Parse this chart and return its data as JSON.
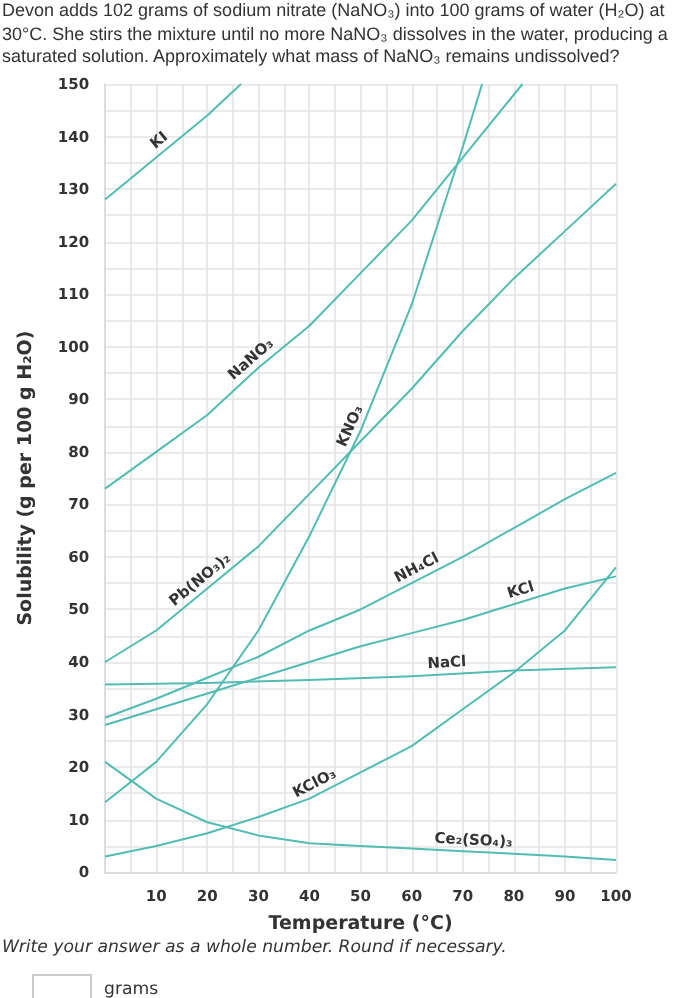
{
  "chart_data": {
    "type": "line",
    "title": "Devon adds 102 grams of sodium nitrate (NaNO₃) into 100 grams of water (H₂O) at 30°C. She stirs the mixture until no more NaNO₃ dissolves in the water, producing a saturated solution. Approximately what mass of NaNO₃ remains undissolved?",
    "xlabel": "Temperature (°C)",
    "ylabel": "Solubility (g per 100 g H₂O)",
    "xlim": [
      0,
      100
    ],
    "ylim": [
      0,
      150
    ],
    "xticks": [
      {
        "value": 0,
        "label": null
      },
      {
        "value": 5,
        "label": null
      },
      10,
      {
        "value": 15,
        "label": null
      },
      20,
      {
        "value": 25,
        "label": null
      },
      30,
      {
        "value": 35,
        "label": null
      },
      40,
      {
        "value": 45,
        "label": null
      },
      50,
      {
        "value": 55,
        "label": null
      },
      60,
      {
        "value": 65,
        "label": null
      },
      70,
      {
        "value": 75,
        "label": null
      },
      80,
      {
        "value": 85,
        "label": null
      },
      90,
      {
        "value": 95,
        "label": null
      },
      100
    ],
    "yticks": [
      0,
      {
        "value": 5,
        "label": null
      },
      10,
      {
        "value": 15,
        "label": null
      },
      20,
      {
        "value": 25,
        "label": null
      },
      30,
      {
        "value": 35,
        "label": null
      },
      40,
      {
        "value": 45,
        "label": null
      },
      50,
      {
        "value": 55,
        "label": null
      },
      60,
      {
        "value": 65,
        "label": null
      },
      70,
      {
        "value": 75,
        "label": null
      },
      80,
      {
        "value": 85,
        "label": null
      },
      90,
      {
        "value": 95,
        "label": null
      },
      100,
      {
        "value": 105,
        "label": null
      },
      110,
      {
        "value": 115,
        "label": null
      },
      120,
      {
        "value": 125,
        "label": null
      },
      130,
      {
        "value": 135,
        "label": null
      },
      140,
      {
        "value": 145,
        "label": null
      },
      150
    ],
    "grid": true,
    "marker": "none",
    "line_style": "solid",
    "series": [
      {
        "color": "#52bcb3",
        "x": [
          0,
          10,
          20,
          26.6
        ],
        "values": [
          128,
          136,
          144,
          150
        ]
      },
      {
        "color": "#52bcb3",
        "x": [
          0,
          10,
          20,
          30,
          40,
          50,
          60,
          70,
          81.7
        ],
        "values": [
          73,
          80,
          87,
          96,
          104,
          114,
          124,
          136,
          150
        ]
      },
      {
        "color": "#52bcb3",
        "x": [
          0,
          10,
          20,
          30,
          40,
          50,
          60,
          70,
          73.8
        ],
        "values": [
          13.3,
          21,
          32,
          46,
          64,
          84,
          108,
          138,
          150
        ]
      },
      {
        "color": "#52bcb3",
        "x": [
          0,
          10,
          20,
          30,
          40,
          50,
          60,
          70,
          80,
          90,
          100
        ],
        "values": [
          40,
          46,
          54,
          62,
          72,
          82,
          92,
          103,
          113,
          122,
          131
        ]
      },
      {
        "color": "#52bcb3",
        "x": [
          0,
          10,
          20,
          30,
          40,
          50,
          60,
          70,
          80,
          90,
          100
        ],
        "values": [
          29.4,
          33,
          37,
          41,
          46,
          50,
          55,
          60,
          65.5,
          71,
          76
        ]
      },
      {
        "color": "#52bcb3",
        "x": [
          0,
          10,
          20,
          30,
          40,
          50,
          60,
          70,
          80,
          90,
          100
        ],
        "values": [
          28,
          31,
          34,
          37,
          40,
          43,
          45.5,
          48,
          51,
          54,
          56.3
        ]
      },
      {
        "color": "#52bcb3",
        "x": [
          0,
          20,
          40,
          60,
          80,
          100
        ],
        "values": [
          35.7,
          36,
          36.6,
          37.3,
          38.4,
          39
        ]
      },
      {
        "color": "#52bcb3",
        "x": [
          0,
          10,
          20,
          30,
          40,
          50,
          60,
          70,
          80,
          90,
          100
        ],
        "values": [
          3,
          5,
          7.4,
          10.5,
          14,
          19,
          24,
          31,
          38,
          46,
          58
        ]
      },
      {
        "color": "#52bcb3",
        "x": [
          0,
          10,
          20,
          30,
          40,
          50,
          60,
          70,
          80,
          90,
          100
        ],
        "values": [
          21,
          14,
          9.5,
          7,
          5.5,
          5,
          4.5,
          4,
          3.5,
          3,
          2.3
        ]
      }
    ],
    "annotations": [
      {
        "text": "KI",
        "x": 12,
        "y": 137.6
      },
      {
        "text": "NaNO₃",
        "x": 30,
        "y": 96
      },
      {
        "text": "KNO₃",
        "x": 50,
        "y": 84
      },
      {
        "text": "Pb(NO₃)₂",
        "x": 20,
        "y": 54
      },
      {
        "text": "NH₄Cl",
        "x": 62,
        "y": 56
      },
      {
        "text": "KCl",
        "x": 82,
        "y": 51.6
      },
      {
        "text": "NaCl",
        "x": 67,
        "y": 37.7
      },
      {
        "text": "KClO₃",
        "x": 42,
        "y": 15
      },
      {
        "text": "Ce₂(SO₄)₃",
        "x": 72,
        "y": 3.9
      },
      "Write your answer as a whole number. Round if necessary.",
      "grams"
    ]
  }
}
